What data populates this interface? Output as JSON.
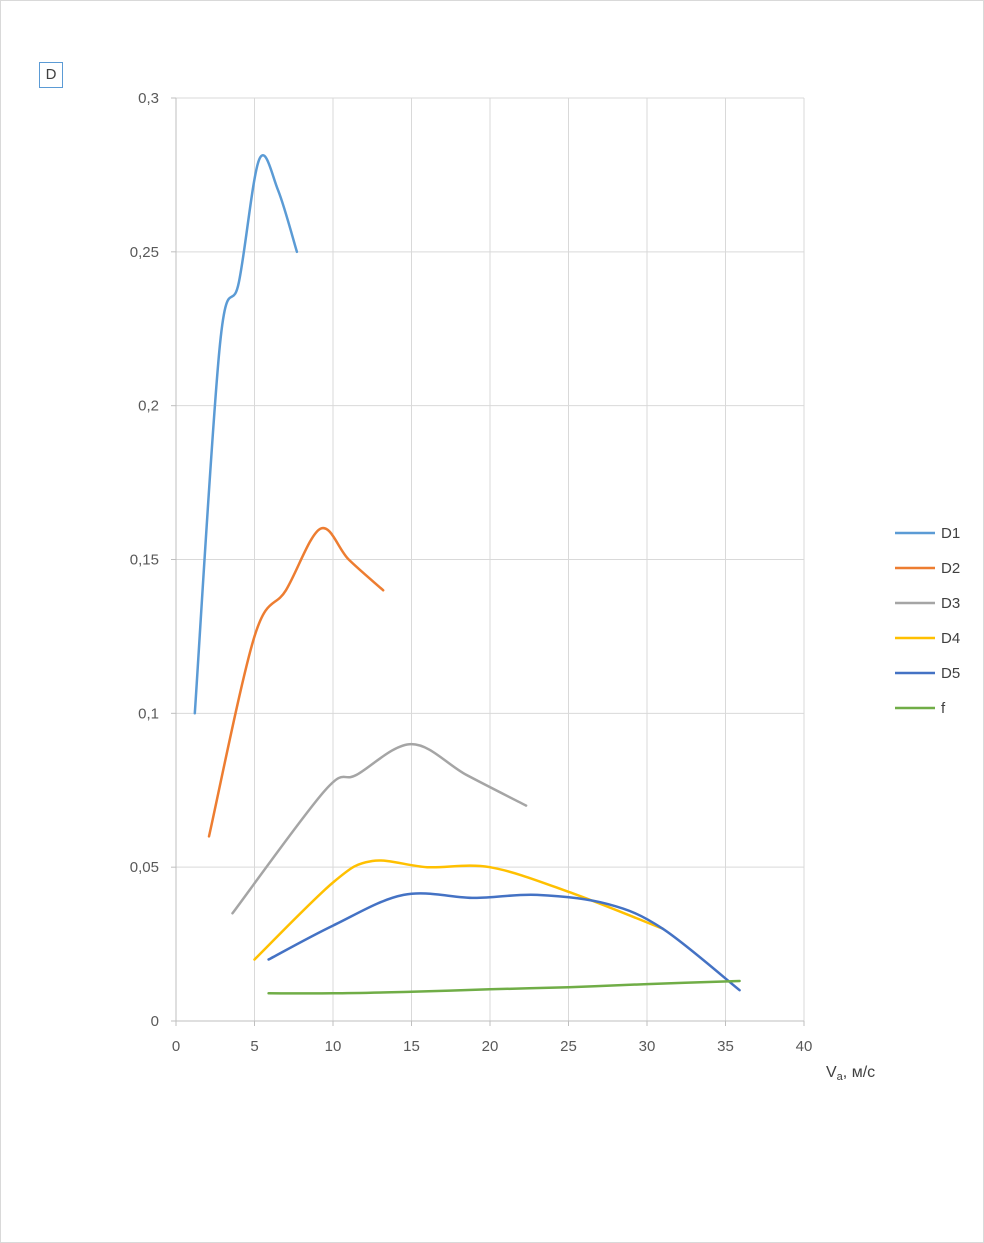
{
  "chart_data": {
    "type": "line",
    "title": "",
    "ylabel": "D",
    "xlabel": {
      "base": "V",
      "sub": "a",
      "rest": ", м/с"
    },
    "xlim": [
      0,
      40
    ],
    "ylim": [
      0,
      0.3
    ],
    "x_ticks": [
      "0",
      "5",
      "10",
      "15",
      "20",
      "25",
      "30",
      "35",
      "40"
    ],
    "y_ticks": [
      "0",
      "0,05",
      "0,1",
      "0,15",
      "0,2",
      "0,25",
      "0,3"
    ],
    "grid": true,
    "legend": "right",
    "smooth": true,
    "series": [
      {
        "name": "D1",
        "color": "#5b9bd5",
        "x": [
          1.2,
          2.8,
          4.0,
          5.3,
          6.5,
          7.7
        ],
        "y": [
          0.1,
          0.22,
          0.24,
          0.28,
          0.27,
          0.25
        ]
      },
      {
        "name": "D2",
        "color": "#ed7d31",
        "x": [
          2.1,
          5.0,
          7.0,
          9.2,
          11.0,
          13.2
        ],
        "y": [
          0.06,
          0.125,
          0.14,
          0.16,
          0.15,
          0.14
        ]
      },
      {
        "name": "D3",
        "color": "#a5a5a5",
        "x": [
          3.6,
          9.5,
          11.5,
          15.0,
          18.5,
          22.3
        ],
        "y": [
          0.035,
          0.075,
          0.08,
          0.09,
          0.08,
          0.07
        ]
      },
      {
        "name": "D4",
        "color": "#ffc000",
        "x": [
          5.0,
          10.0,
          12.5,
          16.0,
          20.0,
          25.0,
          31.0
        ],
        "y": [
          0.02,
          0.045,
          0.052,
          0.05,
          0.05,
          0.042,
          0.03
        ]
      },
      {
        "name": "D5",
        "color": "#4472c4",
        "x": [
          5.9,
          10.0,
          14.5,
          19.0,
          23.0,
          27.5,
          31.0,
          35.9
        ],
        "y": [
          0.02,
          0.031,
          0.041,
          0.04,
          0.041,
          0.038,
          0.03,
          0.01
        ]
      },
      {
        "name": "f",
        "color": "#70ad47",
        "x": [
          5.9,
          10.0,
          15.0,
          20.0,
          25.0,
          30.0,
          35.9
        ],
        "y": [
          0.009,
          0.009,
          0.0095,
          0.0103,
          0.011,
          0.012,
          0.013
        ]
      }
    ]
  }
}
